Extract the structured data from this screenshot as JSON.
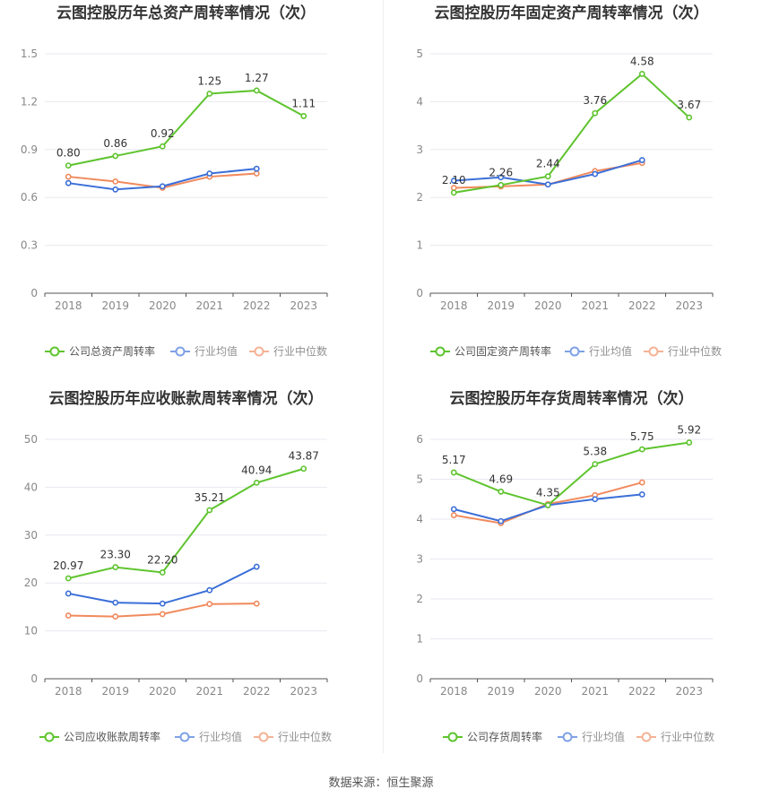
{
  "source_text": "数据来源：恒生聚源",
  "colors": {
    "company": "#5ec42e",
    "avg": "#3b6fd8",
    "median": "#f08a5d",
    "grid": "#e8e8f0",
    "axis": "#555555"
  },
  "chart_data": [
    {
      "type": "line",
      "title": "云图控股历年总资产周转率情况（次）",
      "categories": [
        "2018",
        "2019",
        "2020",
        "2021",
        "2022",
        "2023"
      ],
      "ylim": [
        0,
        1.5
      ],
      "yticks": [
        "0",
        "0.3",
        "0.6",
        "0.9",
        "1.2",
        "1.5"
      ],
      "ytick_values": [
        0,
        0.3,
        0.6,
        0.9,
        1.2,
        1.5
      ],
      "series": [
        {
          "name": "公司总资产周转率",
          "values": [
            0.8,
            0.86,
            0.92,
            1.25,
            1.27,
            1.11
          ],
          "labels": [
            "0.80",
            "0.86",
            "0.92",
            "1.25",
            "1.27",
            "1.11"
          ]
        },
        {
          "name": "行业均值",
          "values": [
            0.69,
            0.65,
            0.67,
            0.75,
            0.78,
            null
          ]
        },
        {
          "name": "行业中位数",
          "values": [
            0.73,
            0.7,
            0.66,
            0.73,
            0.75,
            null
          ]
        }
      ],
      "legend": "bottom"
    },
    {
      "type": "line",
      "title": "云图控股历年固定资产周转率情况（次）",
      "categories": [
        "2018",
        "2019",
        "2020",
        "2021",
        "2022",
        "2023"
      ],
      "ylim": [
        0,
        5
      ],
      "yticks": [
        "0",
        "1",
        "2",
        "3",
        "4",
        "5"
      ],
      "ytick_values": [
        0,
        1,
        2,
        3,
        4,
        5
      ],
      "series": [
        {
          "name": "公司固定资产周转率",
          "values": [
            2.1,
            2.26,
            2.44,
            3.76,
            4.58,
            3.67
          ],
          "labels": [
            "2.10",
            "2.26",
            "2.44",
            "3.76",
            "4.58",
            "3.67"
          ]
        },
        {
          "name": "行业均值",
          "values": [
            2.35,
            2.42,
            2.27,
            2.49,
            2.78,
            null
          ]
        },
        {
          "name": "行业中位数",
          "values": [
            2.2,
            2.23,
            2.27,
            2.55,
            2.72,
            null
          ]
        }
      ],
      "legend": "bottom"
    },
    {
      "type": "line",
      "title": "云图控股历年应收账款周转率情况（次）",
      "categories": [
        "2018",
        "2019",
        "2020",
        "2021",
        "2022",
        "2023"
      ],
      "ylim": [
        0,
        50
      ],
      "yticks": [
        "0",
        "10",
        "20",
        "30",
        "40",
        "50"
      ],
      "ytick_values": [
        0,
        10,
        20,
        30,
        40,
        50
      ],
      "series": [
        {
          "name": "公司应收账款周转率",
          "values": [
            20.97,
            23.3,
            22.2,
            35.21,
            40.94,
            43.87
          ],
          "labels": [
            "20.97",
            "23.30",
            "22.20",
            "35.21",
            "40.94",
            "43.87"
          ]
        },
        {
          "name": "行业均值",
          "values": [
            17.8,
            15.9,
            15.7,
            18.5,
            23.4,
            null
          ]
        },
        {
          "name": "行业中位数",
          "values": [
            13.2,
            13.0,
            13.5,
            15.6,
            15.7,
            null
          ]
        }
      ],
      "legend": "bottom"
    },
    {
      "type": "line",
      "title": "云图控股历年存货周转率情况（次）",
      "categories": [
        "2018",
        "2019",
        "2020",
        "2021",
        "2022",
        "2023"
      ],
      "ylim": [
        0,
        6
      ],
      "yticks": [
        "0",
        "1",
        "2",
        "3",
        "4",
        "5",
        "6"
      ],
      "ytick_values": [
        0,
        1,
        2,
        3,
        4,
        5,
        6
      ],
      "series": [
        {
          "name": "公司存货周转率",
          "values": [
            5.17,
            4.69,
            4.35,
            5.38,
            5.75,
            5.92
          ],
          "labels": [
            "5.17",
            "4.69",
            "4.35",
            "5.38",
            "5.75",
            "5.92"
          ]
        },
        {
          "name": "行业均值",
          "values": [
            4.25,
            3.95,
            4.35,
            4.5,
            4.62,
            null
          ]
        },
        {
          "name": "行业中位数",
          "values": [
            4.1,
            3.9,
            4.38,
            4.6,
            4.92,
            null
          ]
        }
      ],
      "legend": "bottom"
    }
  ]
}
